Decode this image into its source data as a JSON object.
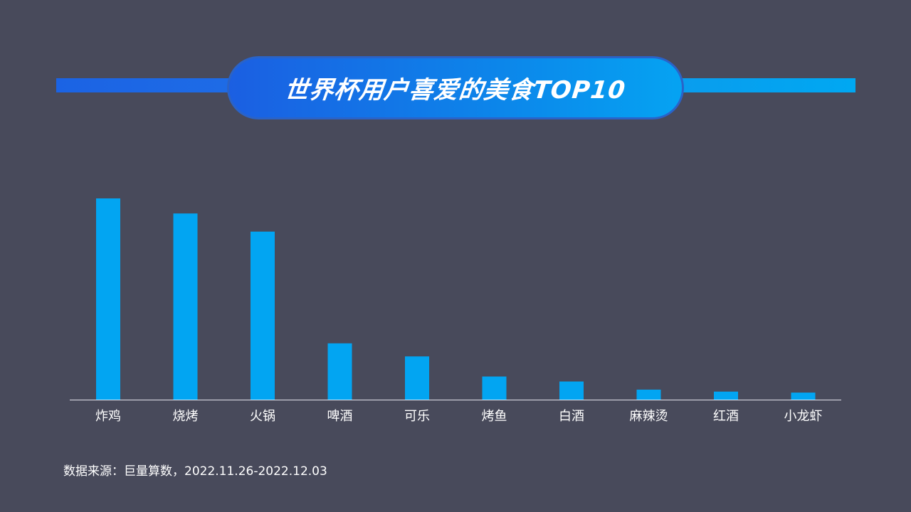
{
  "title": "世界杯用户喜爱的美食TOP10",
  "source_note": "数据来源：巨量算数，2022.11.26-2022.12.03",
  "colors": {
    "background": "#484a5b",
    "bar": "#02a5f2",
    "axis": "#e6e6ee",
    "label": "#ffffff"
  },
  "chart_data": {
    "type": "bar",
    "categories": [
      "炸鸡",
      "烧烤",
      "火锅",
      "啤酒",
      "可乐",
      "烤鱼",
      "白酒",
      "麻辣烫",
      "红酒",
      "小龙虾"
    ],
    "values": [
      100,
      92.5,
      83.5,
      28,
      21.5,
      11.5,
      9,
      5,
      4,
      3.5
    ],
    "ylim": [
      0,
      100
    ],
    "grid": false,
    "legend": "none",
    "xlabel": "",
    "ylabel": ""
  }
}
